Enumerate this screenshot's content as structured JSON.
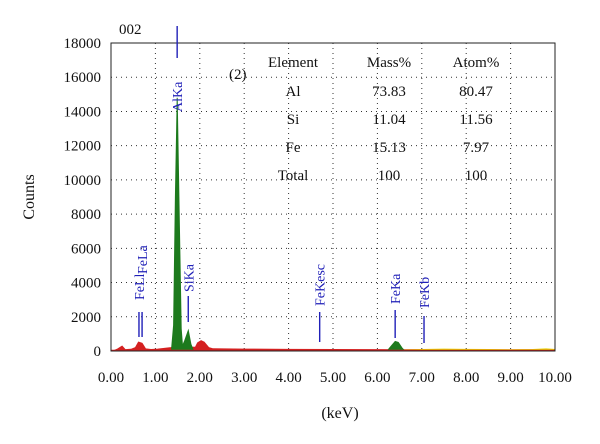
{
  "chart_data": {
    "type": "area",
    "title": "002",
    "xlabel": "(keV)",
    "ylabel": "Counts",
    "xlim": [
      0,
      10
    ],
    "ylim": [
      0,
      18000
    ],
    "xticks": [
      "0.00",
      "1.00",
      "2.00",
      "3.00",
      "4.00",
      "5.00",
      "6.00",
      "7.00",
      "8.00",
      "9.00",
      "10.00"
    ],
    "yticks": [
      "0",
      "2000",
      "4000",
      "6000",
      "8000",
      "10000",
      "12000",
      "14000",
      "16000",
      "18000"
    ],
    "grid": "dotted",
    "series": [
      {
        "color": "#d42020",
        "points": [
          [
            0.05,
            0
          ],
          [
            0.15,
            120
          ],
          [
            0.25,
            280
          ],
          [
            0.32,
            80
          ],
          [
            0.45,
            100
          ],
          [
            0.55,
            200
          ],
          [
            0.62,
            520
          ],
          [
            0.7,
            450
          ],
          [
            0.78,
            120
          ],
          [
            0.9,
            90
          ],
          [
            1.05,
            110
          ],
          [
            1.2,
            150
          ],
          [
            1.35,
            200
          ],
          [
            1.45,
            250
          ],
          [
            1.9,
            220
          ],
          [
            1.95,
            480
          ],
          [
            2.03,
            600
          ],
          [
            2.1,
            520
          ],
          [
            2.2,
            200
          ],
          [
            2.3,
            130
          ],
          [
            3.0,
            110
          ],
          [
            4.0,
            95
          ],
          [
            5.0,
            85
          ],
          [
            5.9,
            80
          ],
          [
            6.5,
            70
          ],
          [
            7.0,
            80
          ],
          [
            8.0,
            70
          ],
          [
            9.0,
            65
          ],
          [
            9.5,
            75
          ],
          [
            9.9,
            80
          ],
          [
            10.0,
            70
          ]
        ]
      },
      {
        "color": "#1d7a1d",
        "points": [
          [
            1.36,
            0
          ],
          [
            1.41,
            1500
          ],
          [
            1.45,
            9000
          ],
          [
            1.49,
            14800
          ],
          [
            1.53,
            9000
          ],
          [
            1.58,
            1300
          ],
          [
            1.61,
            300
          ],
          [
            1.66,
            600
          ],
          [
            1.74,
            1200
          ],
          [
            1.8,
            400
          ],
          [
            1.86,
            0
          ],
          [
            6.22,
            0
          ],
          [
            6.3,
            250
          ],
          [
            6.4,
            560
          ],
          [
            6.47,
            500
          ],
          [
            6.56,
            150
          ],
          [
            6.62,
            0
          ]
        ]
      },
      {
        "color": "#e6d400",
        "points": [
          [
            6.62,
            60
          ],
          [
            7.0,
            90
          ],
          [
            7.5,
            110
          ],
          [
            8.0,
            95
          ],
          [
            8.5,
            90
          ],
          [
            9.0,
            70
          ],
          [
            9.5,
            85
          ],
          [
            9.8,
            120
          ],
          [
            10.0,
            90
          ]
        ]
      }
    ],
    "peak_labels": [
      {
        "text": "FeLl",
        "x": 0.63
      },
      {
        "text": "FeLa",
        "x": 0.7
      },
      {
        "text": "AlKa",
        "x": 1.49
      },
      {
        "text": "SiKa",
        "x": 1.74
      },
      {
        "text": "FeKesc",
        "x": 4.7
      },
      {
        "text": "FeKa",
        "x": 6.4
      },
      {
        "text": "FeKb",
        "x": 7.05
      }
    ],
    "table": {
      "tag": "(2)",
      "headers": [
        "Element",
        "Mass%",
        "Atom%"
      ],
      "rows": [
        [
          "Al",
          "73.83",
          "80.47"
        ],
        [
          "Si",
          "11.04",
          "11.56"
        ],
        [
          "Fe",
          "15.13",
          "7.97"
        ],
        [
          "Total",
          "100",
          "100"
        ]
      ]
    }
  }
}
